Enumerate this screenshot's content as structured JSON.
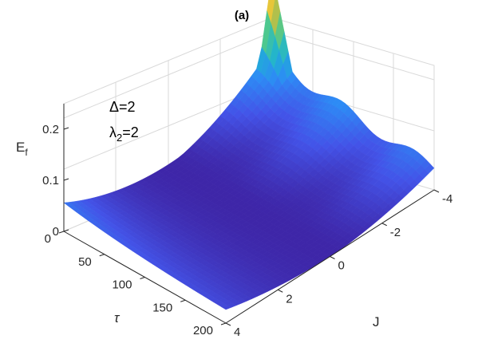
{
  "chart_data": {
    "type": "surface",
    "title": "(a)",
    "zlabel": {
      "main": "E",
      "sub": "f"
    },
    "xlabel": "J",
    "ylabel": "τ",
    "annotations": [
      {
        "prefix": "Δ",
        "suffix": "=2"
      },
      {
        "prefix": "λ",
        "sub": "2",
        "suffix": "=2"
      }
    ],
    "x_ticks": [
      "4",
      "2",
      "0",
      "-2",
      "-4"
    ],
    "y_ticks": [
      "0",
      "50",
      "100",
      "150",
      "200"
    ],
    "z_ticks": [
      "0",
      "0.1",
      "0.2"
    ],
    "xlim": [
      -4,
      4
    ],
    "ylim": [
      0,
      200
    ],
    "zlim": [
      0,
      0.25
    ],
    "grid": true,
    "colormap": "parula",
    "colormap_stops": [
      "#3e26a8",
      "#4353e8",
      "#2d8bf5",
      "#1fb2d2",
      "#4ac891",
      "#b4c04a",
      "#f9c834",
      "#f9fb15"
    ],
    "surface_samples": [
      {
        "tau": 0,
        "J": [
          -4,
          -2,
          0,
          2,
          4
        ],
        "E_f": [
          0.24,
          0.1,
          0.0,
          0.02,
          0.07
        ]
      },
      {
        "tau": 50,
        "J": [
          -4,
          -2,
          0,
          2,
          4
        ],
        "E_f": [
          0.12,
          0.09,
          0.02,
          0.0,
          0.0
        ]
      },
      {
        "tau": 100,
        "J": [
          -4,
          -2,
          0,
          2,
          4
        ],
        "E_f": [
          0.1,
          0.08,
          0.01,
          0.0,
          0.0
        ]
      },
      {
        "tau": 150,
        "J": [
          -4,
          -2,
          0,
          2,
          4
        ],
        "E_f": [
          0.09,
          0.07,
          0.01,
          0.0,
          0.0
        ]
      },
      {
        "tau": 200,
        "J": [
          -4,
          -2,
          0,
          2,
          4
        ],
        "E_f": [
          0.07,
          0.06,
          0.0,
          0.0,
          0.0
        ]
      }
    ]
  }
}
